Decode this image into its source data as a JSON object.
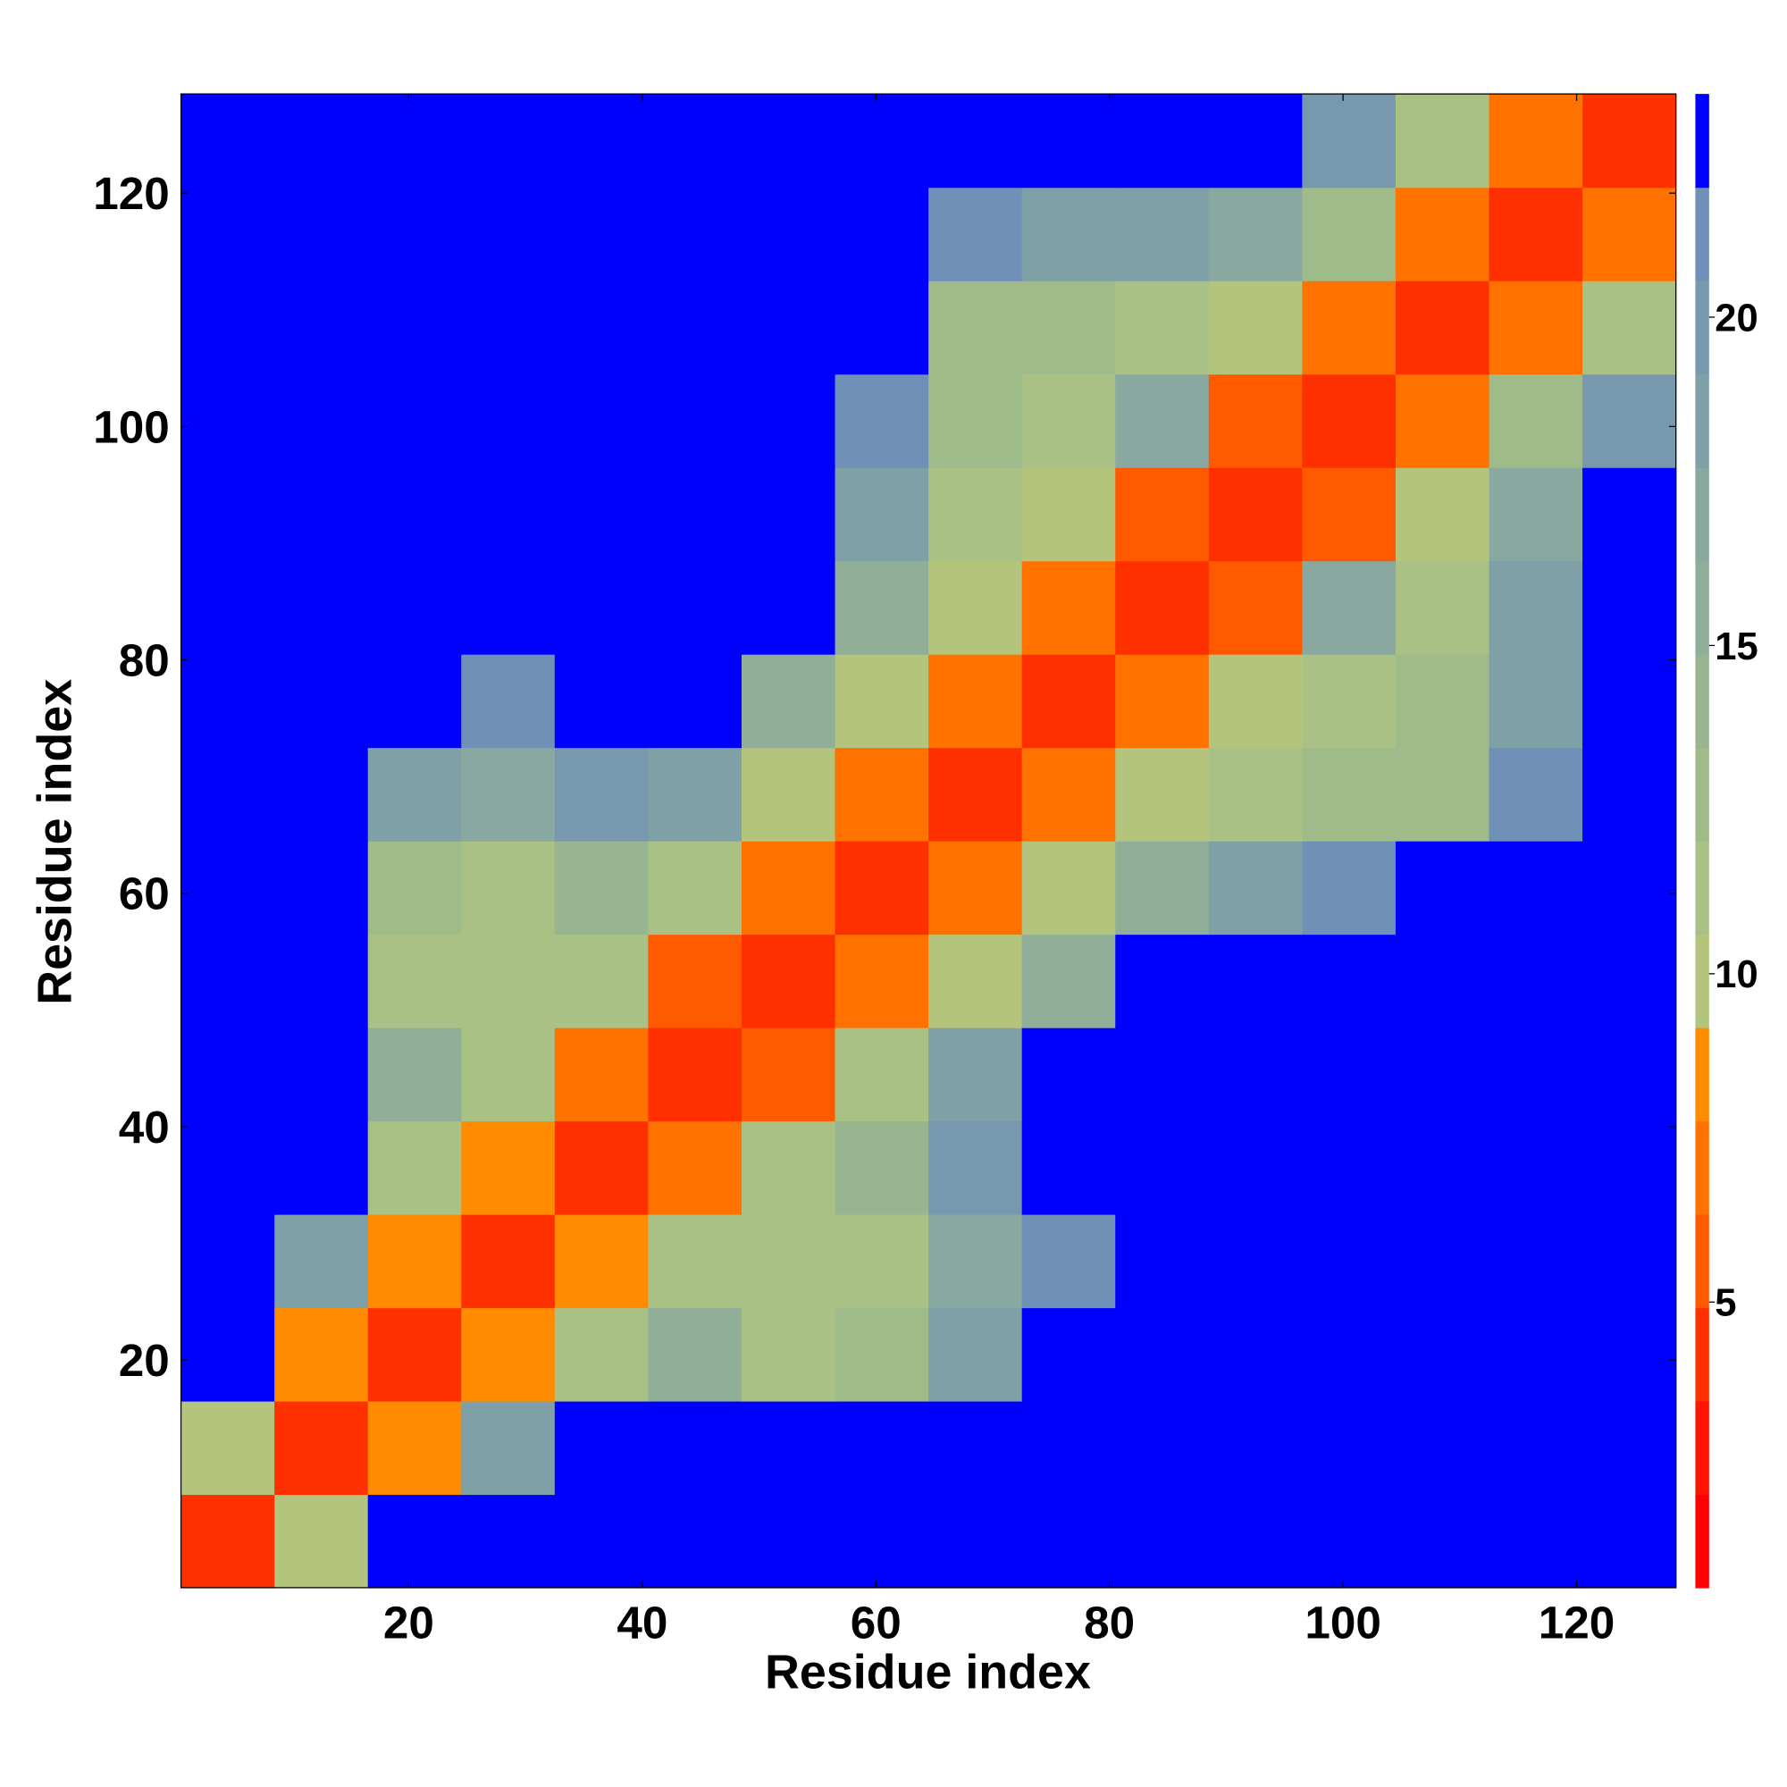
{
  "chart_data": {
    "type": "heatmap",
    "x_label": "Residue index",
    "y_label": "Residue index",
    "x_edges": [
      0.5,
      8.5,
      16.5,
      24.5,
      32.5,
      40.5,
      48.5,
      56.5,
      64.5,
      72.5,
      80.5,
      88.5,
      96.5,
      104.5,
      112.5,
      120.5,
      128.5
    ],
    "y_edges": [
      0.5,
      8.5,
      16.5,
      24.5,
      32.5,
      40.5,
      48.5,
      56.5,
      64.5,
      72.5,
      80.5,
      88.5,
      96.5,
      104.5,
      112.5,
      120.5,
      128.5
    ],
    "z": [
      [
        4,
        10,
        23,
        23,
        23,
        23,
        23,
        23,
        23,
        23,
        23,
        23,
        23,
        23,
        23,
        23
      ],
      [
        10,
        4,
        9,
        18,
        23,
        23,
        23,
        23,
        23,
        23,
        23,
        23,
        23,
        23,
        23,
        23
      ],
      [
        23,
        9,
        4,
        8,
        11,
        16,
        12,
        13,
        19,
        23,
        23,
        23,
        23,
        23,
        23,
        23
      ],
      [
        23,
        18,
        8,
        4,
        8,
        12,
        11,
        12,
        17,
        21,
        23,
        23,
        23,
        23,
        23,
        23
      ],
      [
        23,
        23,
        11,
        8,
        4,
        7,
        12,
        14,
        20,
        23,
        23,
        23,
        23,
        23,
        23,
        23
      ],
      [
        23,
        23,
        16,
        12,
        7,
        4,
        6,
        12,
        18,
        23,
        23,
        23,
        23,
        23,
        23,
        23
      ],
      [
        23,
        23,
        12,
        11,
        12,
        6,
        4,
        7,
        10,
        15,
        23,
        23,
        23,
        23,
        23,
        23
      ],
      [
        23,
        23,
        13,
        12,
        14,
        12,
        7,
        4,
        7,
        10,
        15,
        18,
        21,
        22,
        23,
        23
      ],
      [
        23,
        23,
        19,
        17,
        20,
        18,
        10,
        7,
        4,
        7,
        10,
        12,
        13,
        13,
        21,
        23
      ],
      [
        23,
        23,
        23,
        21,
        23,
        23,
        15,
        10,
        7,
        4,
        7,
        10,
        12,
        13,
        19,
        23
      ],
      [
        23,
        23,
        23,
        23,
        23,
        23,
        23,
        15,
        10,
        7,
        4,
        6,
        17,
        12,
        18,
        23
      ],
      [
        23,
        23,
        23,
        23,
        23,
        23,
        23,
        18,
        12,
        10,
        6,
        4,
        6,
        10,
        17,
        23
      ],
      [
        23,
        23,
        23,
        23,
        23,
        23,
        23,
        21,
        13,
        12,
        17,
        6,
        4,
        7,
        13,
        20
      ],
      [
        23,
        23,
        23,
        23,
        23,
        23,
        23,
        22,
        13,
        13,
        12,
        10,
        7,
        4,
        7,
        12
      ],
      [
        23,
        23,
        23,
        23,
        23,
        23,
        23,
        23,
        21,
        19,
        18,
        17,
        13,
        7,
        4,
        7
      ],
      [
        23,
        23,
        23,
        23,
        23,
        23,
        23,
        23,
        23,
        23,
        23,
        23,
        20,
        12,
        7,
        4
      ]
    ],
    "xlim": [
      0.5,
      128.5
    ],
    "ylim": [
      0.5,
      128.5
    ],
    "xticks": [
      20,
      40,
      60,
      80,
      100,
      120
    ],
    "yticks": [
      20,
      40,
      60,
      80,
      100,
      120
    ],
    "grid": false,
    "colorbar": {
      "lim": [
        0.65,
        23.4
      ],
      "ticks": [
        5,
        10,
        15,
        20
      ]
    },
    "colors": [
      "#ff0000",
      "#ff1400",
      "#ff3000",
      "#ff5a00",
      "#ff7200",
      "#ff8c00",
      "#b5c47c",
      "#a9c184",
      "#a0bb8a",
      "#98b590",
      "#90ae98",
      "#88a8a0",
      "#80a0a8",
      "#7898b0",
      "#7090b8",
      "#0000ff"
    ]
  }
}
